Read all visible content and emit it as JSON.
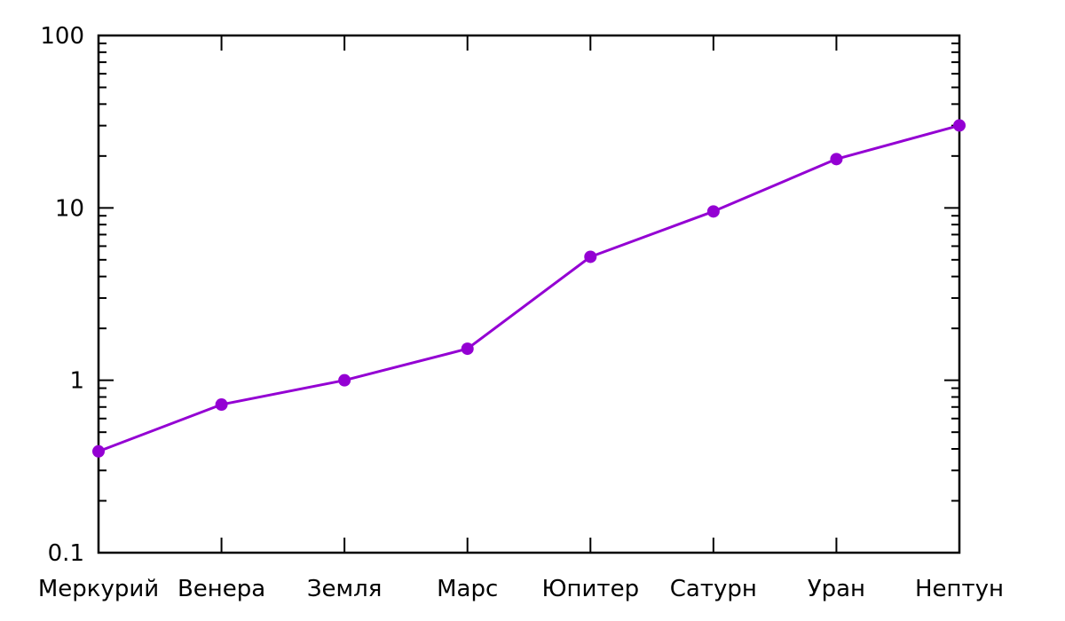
{
  "chart_data": {
    "type": "line",
    "title": "",
    "xlabel": "",
    "ylabel": "",
    "categories": [
      "Меркурий",
      "Венера",
      "Земля",
      "Марс",
      "Юпитер",
      "Сатурн",
      "Уран",
      "Нептун"
    ],
    "series": [
      {
        "values": [
          0.387,
          0.723,
          1.0,
          1.524,
          5.203,
          9.537,
          19.19,
          30.07
        ]
      }
    ],
    "y_scale": "log",
    "ylim": [
      0.1,
      100
    ],
    "y_ticks": [
      0.1,
      1,
      10,
      100
    ],
    "y_tick_labels": [
      "0.1",
      "1",
      "10",
      "100"
    ],
    "grid": false,
    "legend": "none",
    "colors": {
      "series": "#9400D3",
      "axes": "#000000"
    }
  }
}
